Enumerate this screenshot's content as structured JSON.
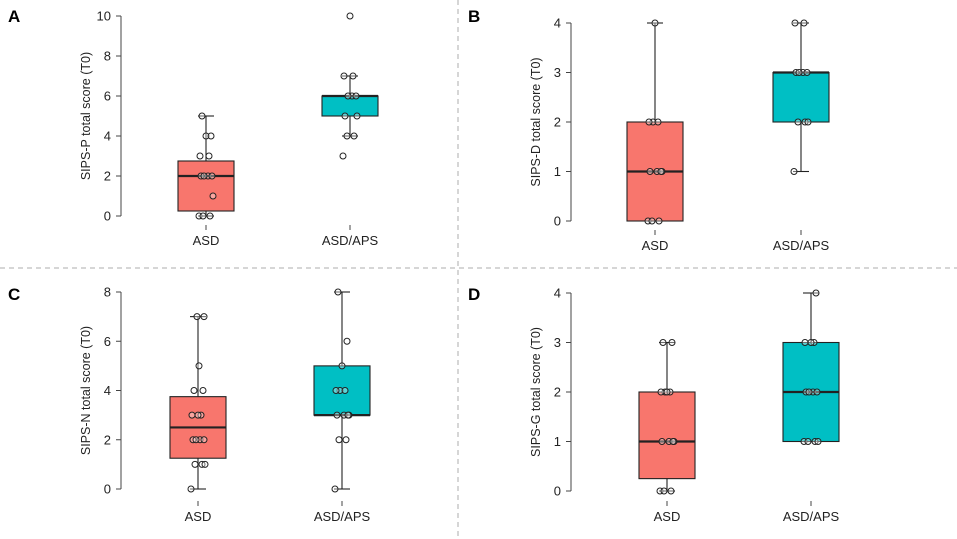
{
  "colors": {
    "asd": "#f8766d",
    "asd_aps": "#00bfc4",
    "stroke": "#222222",
    "divider": "#c8c8c8"
  },
  "chart_data": [
    {
      "panel": "A",
      "type": "box",
      "ylabel": "SIPS-P total score (T0)",
      "ylim": [
        0,
        10
      ],
      "yticks": [
        0,
        2,
        4,
        6,
        8,
        10
      ],
      "categories": [
        "ASD",
        "ASD/APS"
      ],
      "series": [
        {
          "name": "ASD",
          "min": 0,
          "q1": 0.25,
          "median": 2,
          "q3": 2.75,
          "max": 5,
          "points": [
            0,
            0,
            0,
            1,
            2,
            2,
            2,
            2,
            3,
            3,
            4,
            4,
            5
          ]
        },
        {
          "name": "ASD/APS",
          "min": 4,
          "q1": 5,
          "median": 6,
          "q3": 6,
          "max": 7,
          "points": [
            3,
            4,
            4,
            5,
            5,
            6,
            6,
            6,
            7,
            7,
            10
          ]
        }
      ]
    },
    {
      "panel": "B",
      "type": "box",
      "ylabel": "SIPS-D total score (T0)",
      "ylim": [
        0,
        4
      ],
      "yticks": [
        0,
        1,
        2,
        3,
        4
      ],
      "categories": [
        "ASD",
        "ASD/APS"
      ],
      "series": [
        {
          "name": "ASD",
          "min": 0,
          "q1": 0,
          "median": 1,
          "q3": 2,
          "max": 4,
          "points": [
            0,
            0,
            0,
            1,
            1,
            1,
            1,
            2,
            2,
            2,
            4
          ]
        },
        {
          "name": "ASD/APS",
          "min": 1,
          "q1": 2,
          "median": 3,
          "q3": 3,
          "max": 4,
          "points": [
            1,
            2,
            2,
            2,
            3,
            3,
            3,
            3,
            4,
            4
          ]
        }
      ]
    },
    {
      "panel": "C",
      "type": "box",
      "ylabel": "SIPS-N total score (T0)",
      "ylim": [
        0,
        8
      ],
      "yticks": [
        0,
        2,
        4,
        6,
        8
      ],
      "categories": [
        "ASD",
        "ASD/APS"
      ],
      "series": [
        {
          "name": "ASD",
          "min": 0,
          "q1": 1.25,
          "median": 2.5,
          "q3": 3.75,
          "max": 7,
          "points": [
            0,
            1,
            1,
            1,
            2,
            2,
            2,
            2,
            3,
            3,
            3,
            4,
            4,
            5,
            7,
            7
          ]
        },
        {
          "name": "ASD/APS",
          "min": 0,
          "q1": 3,
          "median": 3,
          "q3": 5,
          "max": 8,
          "points": [
            0,
            2,
            2,
            3,
            3,
            3,
            3,
            4,
            4,
            4,
            5,
            6,
            8
          ]
        }
      ]
    },
    {
      "panel": "D",
      "type": "box",
      "ylabel": "SIPS-G total score (T0)",
      "ylim": [
        0,
        4
      ],
      "yticks": [
        0,
        1,
        2,
        3,
        4
      ],
      "categories": [
        "ASD",
        "ASD/APS"
      ],
      "series": [
        {
          "name": "ASD",
          "min": 0,
          "q1": 0.25,
          "median": 1,
          "q3": 2,
          "max": 3,
          "points": [
            0,
            0,
            0,
            1,
            1,
            1,
            1,
            2,
            2,
            2,
            2,
            3,
            3
          ]
        },
        {
          "name": "ASD/APS",
          "min": 1,
          "q1": 1,
          "median": 2,
          "q3": 3,
          "max": 4,
          "points": [
            1,
            1,
            1,
            1,
            2,
            2,
            2,
            2,
            3,
            3,
            3,
            4
          ]
        }
      ]
    }
  ]
}
